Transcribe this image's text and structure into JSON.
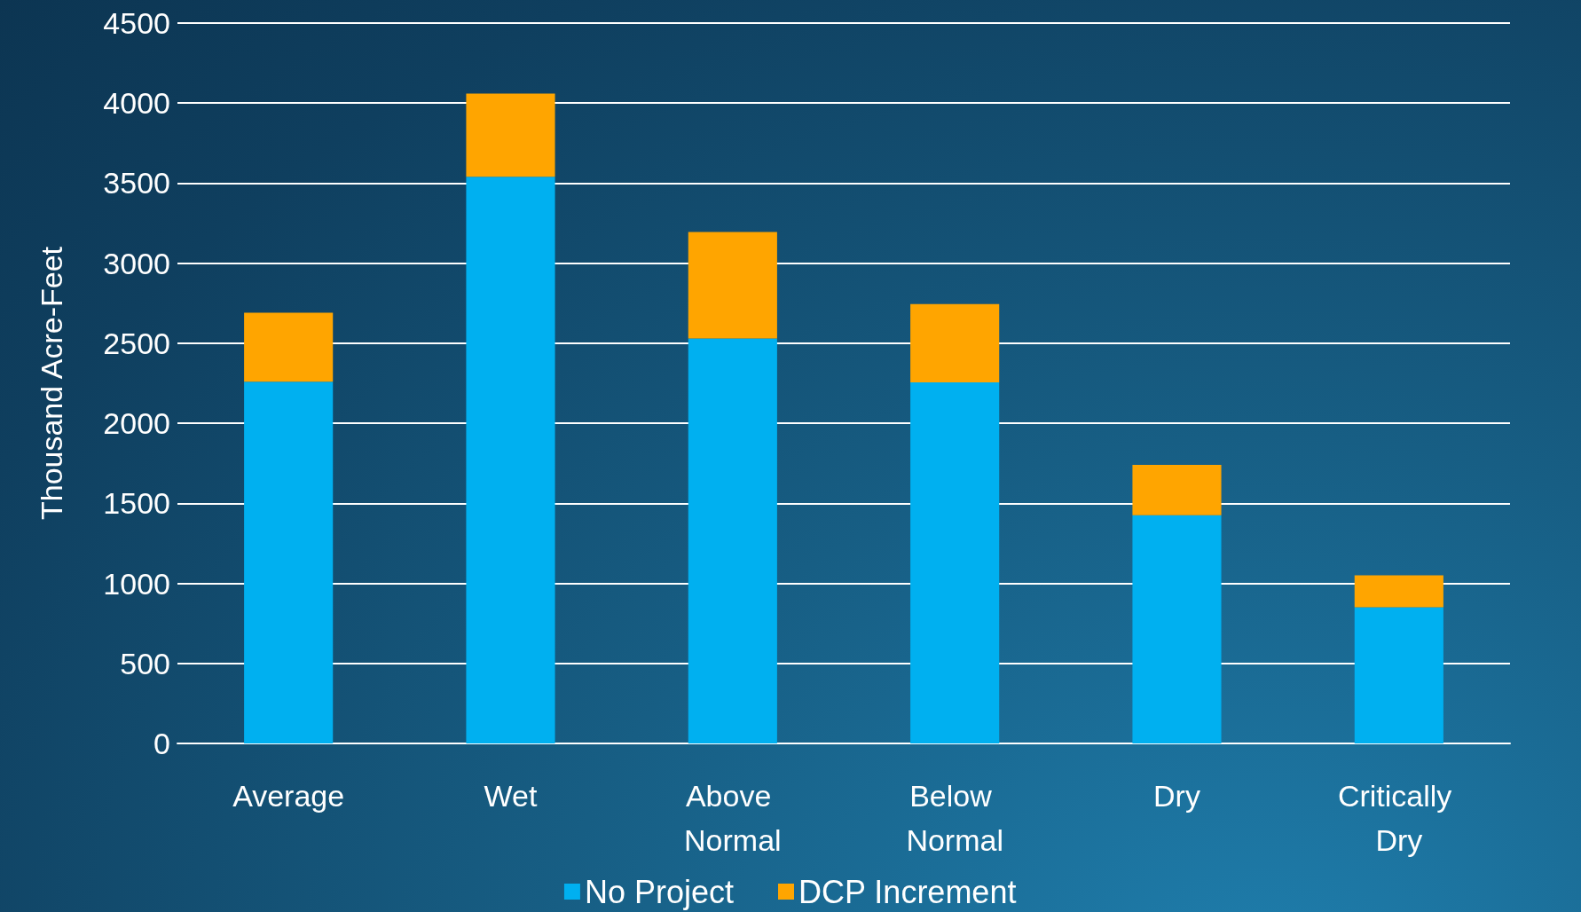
{
  "chart_data": {
    "type": "bar",
    "stacked": true,
    "ylabel": "Thousand Acre-Feet",
    "categories": [
      "Average",
      "Wet",
      "Above Normal",
      "Below Normal",
      "Dry",
      "Critically Dry"
    ],
    "series": [
      {
        "name": "No Project",
        "color": "#00b0f0",
        "values": [
          2260,
          3540,
          2530,
          2255,
          1425,
          850
        ]
      },
      {
        "name": "DCP Increment",
        "color": "#ffa500",
        "values": [
          430,
          520,
          665,
          490,
          315,
          200
        ]
      }
    ],
    "ylim": [
      0,
      4500
    ],
    "yticks": [
      0,
      500,
      1000,
      1500,
      2000,
      2500,
      3000,
      3500,
      4000,
      4500
    ],
    "grid": "y",
    "legend": "bottom"
  }
}
